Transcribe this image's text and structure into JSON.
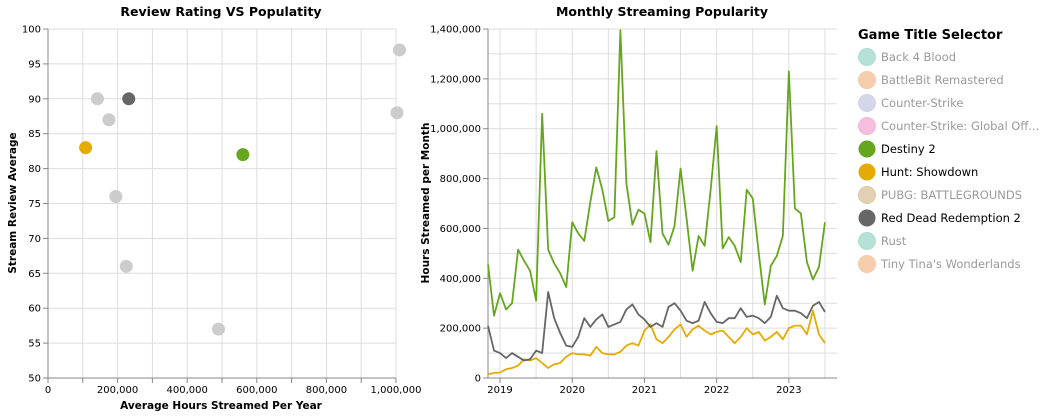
{
  "chart_data": [
    {
      "type": "scatter",
      "title": "Review Rating VS Populatity",
      "xlabel": "Average Hours Streamed Per Year",
      "ylabel": "Stream Review Average",
      "xlim": [
        0,
        1000000
      ],
      "ylim": [
        50,
        100
      ],
      "xticks": [
        0,
        200000,
        400000,
        600000,
        800000,
        1000000
      ],
      "xtick_labels": [
        "0",
        "200,000",
        "400,000",
        "600,000",
        "800,000",
        "1,000,000"
      ],
      "yticks": [
        50,
        55,
        60,
        65,
        70,
        75,
        80,
        85,
        90,
        95,
        100
      ],
      "ytick_labels": [
        "50",
        "55",
        "60",
        "65",
        "70",
        "75",
        "80",
        "85",
        "90",
        "95",
        "100"
      ],
      "grid": true,
      "points": [
        {
          "game": "Back 4 Blood",
          "x": 142000,
          "y": 90
        },
        {
          "game": "BattleBit Remastered",
          "x": 175000,
          "y": 87
        },
        {
          "game": "Counter-Strike",
          "x": 195000,
          "y": 76
        },
        {
          "game": "Counter-Strike: Global Offensive",
          "x": 1010000,
          "y": 97
        },
        {
          "game": "Destiny 2",
          "x": 560000,
          "y": 82
        },
        {
          "game": "Hunt: Showdown",
          "x": 108000,
          "y": 83
        },
        {
          "game": "PUBG: BATTLEGROUNDS",
          "x": 1003000,
          "y": 88
        },
        {
          "game": "Red Dead Redemption 2",
          "x": 232000,
          "y": 90
        },
        {
          "game": "Rust",
          "x": 225000,
          "y": 66
        },
        {
          "game": "Tiny Tina's Wonderlands",
          "x": 490000,
          "y": 57
        }
      ]
    },
    {
      "type": "line",
      "title": "Monthly Streaming Popularity",
      "xlabel": "",
      "ylabel": "Hours Streamed per Month",
      "xlim": [
        "2018-11",
        "2023-09"
      ],
      "ylim": [
        0,
        1400000
      ],
      "xticks": [
        "2019-01",
        "2020-01",
        "2021-01",
        "2022-01",
        "2023-01"
      ],
      "xtick_labels": [
        "2019",
        "2020",
        "2021",
        "2022",
        "2023"
      ],
      "yticks": [
        0,
        200000,
        400000,
        600000,
        800000,
        1000000,
        1200000,
        1400000
      ],
      "ytick_labels": [
        "0",
        "200,000",
        "400,000",
        "600,000",
        "800,000",
        "1,000,000",
        "1,200,000",
        "1,400,000"
      ],
      "grid": true,
      "start_month": "2018-11",
      "series": [
        {
          "game": "Destiny 2",
          "values": [
            455000,
            250000,
            340000,
            275000,
            300000,
            515000,
            470000,
            430000,
            310000,
            1060000,
            515000,
            460000,
            420000,
            365000,
            625000,
            580000,
            550000,
            705000,
            845000,
            755000,
            630000,
            645000,
            1395000,
            780000,
            615000,
            675000,
            660000,
            545000,
            910000,
            580000,
            535000,
            610000,
            840000,
            640000,
            430000,
            570000,
            530000,
            755000,
            1010000,
            520000,
            565000,
            530000,
            465000,
            755000,
            720000,
            500000,
            295000,
            450000,
            490000,
            570000,
            1230000,
            680000,
            660000,
            465000,
            395000,
            445000,
            625000
          ]
        },
        {
          "game": "Hunt: Showdown",
          "values": [
            15000,
            20000,
            22000,
            35000,
            40000,
            50000,
            75000,
            70000,
            80000,
            60000,
            40000,
            55000,
            60000,
            85000,
            100000,
            95000,
            95000,
            90000,
            125000,
            100000,
            95000,
            95000,
            105000,
            130000,
            140000,
            130000,
            190000,
            215000,
            155000,
            140000,
            165000,
            195000,
            215000,
            165000,
            195000,
            210000,
            190000,
            175000,
            185000,
            190000,
            165000,
            140000,
            165000,
            200000,
            175000,
            185000,
            150000,
            165000,
            185000,
            155000,
            200000,
            210000,
            210000,
            175000,
            270000,
            175000,
            140000
          ]
        },
        {
          "game": "Red Dead Redemption 2",
          "values": [
            210000,
            110000,
            100000,
            80000,
            100000,
            85000,
            70000,
            75000,
            110000,
            100000,
            345000,
            240000,
            180000,
            130000,
            125000,
            165000,
            240000,
            205000,
            235000,
            255000,
            205000,
            215000,
            225000,
            275000,
            295000,
            255000,
            235000,
            205000,
            220000,
            205000,
            285000,
            300000,
            270000,
            230000,
            220000,
            230000,
            305000,
            260000,
            225000,
            220000,
            240000,
            240000,
            280000,
            245000,
            250000,
            240000,
            220000,
            245000,
            330000,
            280000,
            270000,
            270000,
            260000,
            240000,
            290000,
            305000,
            265000
          ]
        }
      ]
    }
  ],
  "legend": {
    "title": "Game Title Selector",
    "position": "right",
    "items": [
      {
        "label": "Back 4 Blood",
        "color": "#a9dcd0",
        "active": false
      },
      {
        "label": "BattleBit Remastered",
        "color": "#f6c4a1",
        "active": false
      },
      {
        "label": "Counter-Strike",
        "color": "#cfcfe8",
        "active": false
      },
      {
        "label": "Counter-Strike: Global Off...",
        "color": "#f3b2d8",
        "active": false
      },
      {
        "label": "Destiny 2",
        "color": "#66a61e",
        "active": true
      },
      {
        "label": "Hunt: Showdown",
        "color": "#e6ab02",
        "active": true
      },
      {
        "label": "PUBG: BATTLEGROUNDS",
        "color": "#dcc9a4",
        "active": false
      },
      {
        "label": "Red Dead Redemption 2",
        "color": "#666666",
        "active": true
      },
      {
        "label": "Rust",
        "color": "#a9dcd0",
        "active": false
      },
      {
        "label": "Tiny Tina's Wonderlands",
        "color": "#f6c4a1",
        "active": false
      }
    ]
  },
  "colors": {
    "inactive_point": "#cccccc",
    "active_text": "#000000",
    "inactive_text": "#999999"
  }
}
